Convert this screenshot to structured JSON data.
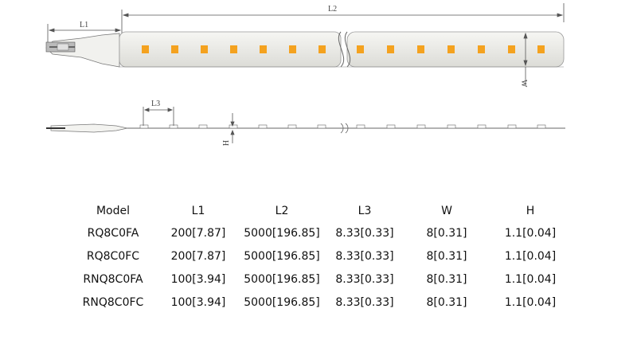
{
  "drawing": {
    "dimension_labels": {
      "L1": "L1",
      "L2": "L2",
      "L3": "L3",
      "W": "W",
      "H": "H"
    },
    "led_color": "#f4a21f",
    "strip_color": "#eeeeea"
  },
  "table": {
    "headers": [
      "Model",
      "L1",
      "L2",
      "L3",
      "W",
      "H"
    ],
    "rows": [
      [
        "RQ8C0FA",
        "200[7.87]",
        "5000[196.85]",
        "8.33[0.33]",
        "8[0.31]",
        "1.1[0.04]"
      ],
      [
        "RQ8C0FC",
        "200[7.87]",
        "5000[196.85]",
        "8.33[0.33]",
        "8[0.31]",
        "1.1[0.04]"
      ],
      [
        "RNQ8C0FA",
        "100[3.94]",
        "5000[196.85]",
        "8.33[0.33]",
        "8[0.31]",
        "1.1[0.04]"
      ],
      [
        "RNQ8C0FC",
        "100[3.94]",
        "5000[196.85]",
        "8.33[0.33]",
        "8[0.31]",
        "1.1[0.04]"
      ]
    ]
  }
}
